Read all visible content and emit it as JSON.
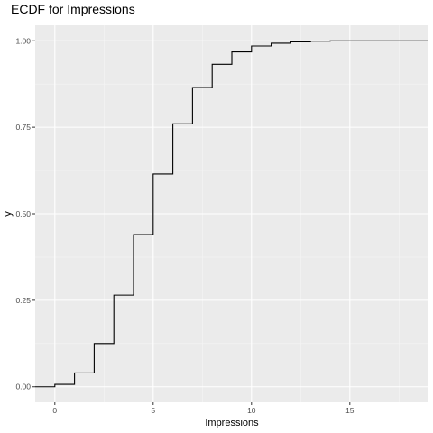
{
  "chart_data": {
    "type": "line",
    "step": "hv",
    "title": "ECDF for Impressions",
    "xlabel": "Impressions",
    "ylabel": "y",
    "xlim": [
      -1,
      19
    ],
    "ylim": [
      -0.045,
      1.045
    ],
    "x_ticks": [
      0,
      5,
      10,
      15
    ],
    "y_ticks": [
      0.0,
      0.25,
      0.5,
      0.75,
      1.0
    ],
    "x_tick_labels": [
      "0",
      "5",
      "10",
      "15"
    ],
    "y_tick_labels": [
      "0.00",
      "0.25",
      "0.50",
      "0.75",
      "1.00"
    ],
    "grid": true,
    "legend": "none",
    "colors": {
      "panel_background": "#ebebeb",
      "grid_major": "#ffffff",
      "grid_minor": "#f5f5f5",
      "line": "#000000",
      "tick_text": "#4d4d4d"
    },
    "series": [
      {
        "x": [
          -1,
          0,
          1,
          2,
          3,
          4,
          5,
          6,
          7,
          8,
          9,
          10,
          11,
          12,
          13,
          14,
          15,
          19
        ],
        "y": [
          0,
          0.007,
          0.04,
          0.125,
          0.265,
          0.44,
          0.615,
          0.76,
          0.865,
          0.932,
          0.968,
          0.985,
          0.993,
          0.997,
          0.999,
          1.0,
          1.0,
          1.0
        ]
      }
    ]
  }
}
